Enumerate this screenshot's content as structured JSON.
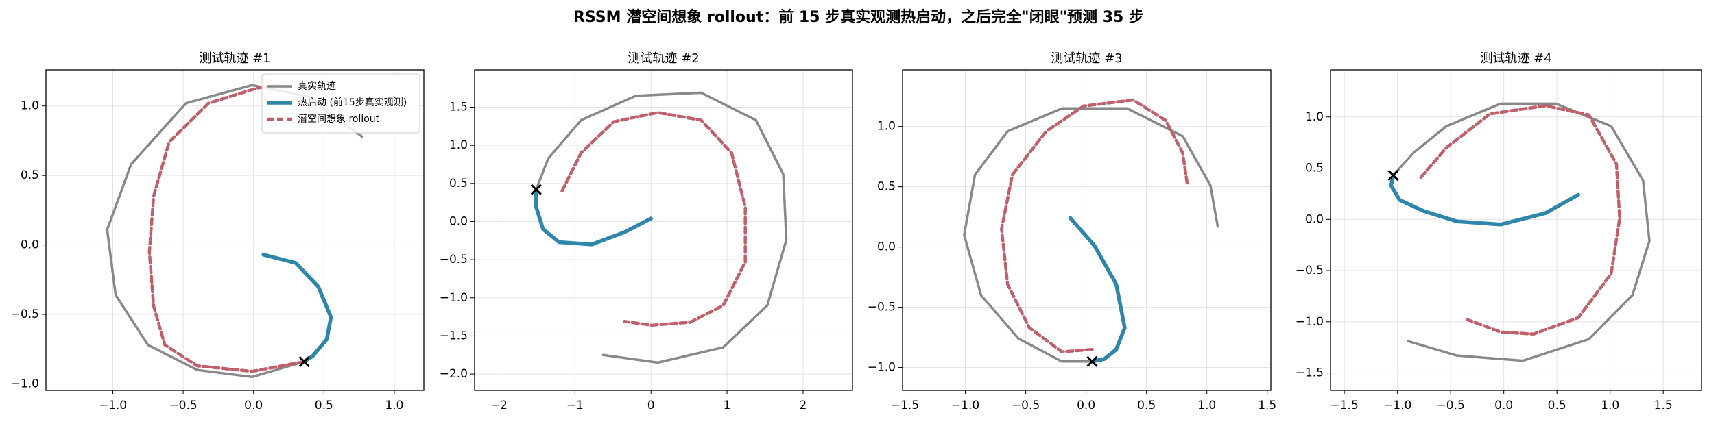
{
  "title": "RSSM 潜空间想象 rollout：前 15 步真实观测热启动，之后完全\"闭眼\"预测 35 步",
  "chart_data": [
    {
      "type": "line",
      "title": "测试轨迹 #1",
      "grid": true,
      "legend": "upper right",
      "xlim": [
        -1.475,
        1.21
      ],
      "ylim": [
        -1.047,
        1.26
      ],
      "xticks": [
        {
          "value": -1.0,
          "label": "−1.0"
        },
        {
          "value": -0.5,
          "label": "−0.5"
        },
        {
          "value": 0.0,
          "label": "0.0"
        },
        {
          "value": 0.5,
          "label": "0.5"
        },
        {
          "value": 1.0,
          "label": "1.0"
        }
      ],
      "yticks": [
        {
          "value": -1.0,
          "label": "−1.0"
        },
        {
          "value": -0.5,
          "label": "−0.5"
        },
        {
          "value": 0.0,
          "label": "0.0"
        },
        {
          "value": 0.5,
          "label": "0.5"
        },
        {
          "value": 1.0,
          "label": "1.0"
        }
      ],
      "series": [
        {
          "name": "真实轨迹",
          "color": "#888888",
          "style": "solid",
          "x": [
            0.07,
            0.3,
            0.46,
            0.55,
            0.52,
            0.42,
            0.36,
            -0.01,
            -0.4,
            -0.75,
            -0.98,
            -1.04,
            -0.87,
            -0.48,
            -0.01,
            0.38,
            0.77
          ],
          "values": [
            -0.07,
            -0.13,
            -0.3,
            -0.52,
            -0.68,
            -0.8,
            -0.84,
            -0.95,
            -0.9,
            -0.72,
            -0.36,
            0.11,
            0.58,
            1.02,
            1.15,
            1.07,
            0.78
          ]
        },
        {
          "name": "热启动 (前15步真实观测)",
          "color": "#2e86ab",
          "style": "thick",
          "x": [
            0.07,
            0.3,
            0.46,
            0.55,
            0.52,
            0.42,
            0.36
          ],
          "values": [
            -0.07,
            -0.13,
            -0.3,
            -0.52,
            -0.68,
            -0.8,
            -0.84
          ]
        },
        {
          "name": "潜空间想象 rollout",
          "color": "#c0606a",
          "style": "dashed",
          "x": [
            0.36,
            -0.01,
            -0.4,
            -0.63,
            -0.71,
            -0.74,
            -0.71,
            -0.6,
            -0.32,
            0.03,
            0.18
          ],
          "values": [
            -0.84,
            -0.91,
            -0.87,
            -0.72,
            -0.44,
            -0.05,
            0.35,
            0.74,
            1.02,
            1.13,
            1.15
          ]
        }
      ],
      "start_marker": {
        "x": 0.36,
        "y": -0.84
      }
    },
    {
      "type": "line",
      "title": "测试轨迹 #2",
      "grid": true,
      "xlim": [
        -2.32,
        2.65
      ],
      "ylim": [
        -2.215,
        1.99
      ],
      "xticks": [
        {
          "value": -2,
          "label": "−2"
        },
        {
          "value": -1,
          "label": "−1"
        },
        {
          "value": 0,
          "label": "0"
        },
        {
          "value": 1,
          "label": "1"
        },
        {
          "value": 2,
          "label": "2"
        }
      ],
      "yticks": [
        {
          "value": -2.0,
          "label": "−2.0"
        },
        {
          "value": -1.5,
          "label": "−1.5"
        },
        {
          "value": -1.0,
          "label": "−1.0"
        },
        {
          "value": -0.5,
          "label": "−0.5"
        },
        {
          "value": 0.0,
          "label": "0.0"
        },
        {
          "value": 0.5,
          "label": "0.5"
        },
        {
          "value": 1.0,
          "label": "1.0"
        },
        {
          "value": 1.5,
          "label": "1.5"
        }
      ],
      "series": [
        {
          "color": "#888888",
          "style": "solid",
          "x": [
            0,
            -0.35,
            -0.78,
            -1.21,
            -1.42,
            -1.51,
            -1.51,
            -1.35,
            -0.92,
            -0.2,
            0.66,
            1.38,
            1.74,
            1.78,
            1.53,
            0.95,
            0.09,
            -0.63
          ],
          "values": [
            0.04,
            -0.14,
            -0.3,
            -0.27,
            -0.1,
            0.19,
            0.42,
            0.83,
            1.33,
            1.65,
            1.69,
            1.33,
            0.62,
            -0.24,
            -1.1,
            -1.65,
            -1.85,
            -1.75
          ]
        },
        {
          "color": "#2e86ab",
          "style": "thick",
          "x": [
            0,
            -0.35,
            -0.78,
            -1.21,
            -1.42,
            -1.51,
            -1.51
          ],
          "values": [
            0.04,
            -0.14,
            -0.3,
            -0.27,
            -0.1,
            0.19,
            0.42
          ]
        },
        {
          "color": "#c0606a",
          "style": "dashed",
          "x": [
            -1.17,
            -0.92,
            -0.49,
            0.09,
            0.66,
            1.06,
            1.24,
            1.24,
            0.95,
            0.52,
            0.01,
            -0.35
          ],
          "values": [
            0.4,
            0.9,
            1.31,
            1.43,
            1.33,
            0.9,
            0.19,
            -0.53,
            -1.1,
            -1.32,
            -1.36,
            -1.31
          ]
        }
      ],
      "start_marker": {
        "x": -1.51,
        "y": 0.42
      }
    },
    {
      "type": "line",
      "title": "测试轨迹 #3",
      "grid": true,
      "xlim": [
        -1.52,
        1.53
      ],
      "ylim": [
        -1.19,
        1.47
      ],
      "xticks": [
        {
          "value": -1.5,
          "label": "−1.5"
        },
        {
          "value": -1.0,
          "label": "−1.0"
        },
        {
          "value": -0.5,
          "label": "−0.5"
        },
        {
          "value": 0.0,
          "label": "0.0"
        },
        {
          "value": 0.5,
          "label": "0.5"
        },
        {
          "value": 1.0,
          "label": "1.0"
        },
        {
          "value": 1.5,
          "label": "1.5"
        }
      ],
      "yticks": [
        {
          "value": -1.0,
          "label": "−1.0"
        },
        {
          "value": -0.5,
          "label": "−0.5"
        },
        {
          "value": 0.0,
          "label": "0.0"
        },
        {
          "value": 0.5,
          "label": "0.5"
        },
        {
          "value": 1.0,
          "label": "1.0"
        }
      ],
      "series": [
        {
          "color": "#888888",
          "style": "solid",
          "x": [
            -0.13,
            0.07,
            0.25,
            0.32,
            0.25,
            0.15,
            0.05,
            -0.2,
            -0.56,
            -0.87,
            -1.01,
            -0.92,
            -0.65,
            -0.2,
            0.34,
            0.8,
            1.03,
            1.09
          ],
          "values": [
            0.24,
            0.01,
            -0.31,
            -0.67,
            -0.85,
            -0.93,
            -0.95,
            -0.95,
            -0.76,
            -0.4,
            0.1,
            0.6,
            0.96,
            1.15,
            1.15,
            0.92,
            0.51,
            0.17
          ]
        },
        {
          "color": "#2e86ab",
          "style": "thick",
          "x": [
            -0.13,
            0.07,
            0.25,
            0.32,
            0.25,
            0.15,
            0.05
          ],
          "values": [
            0.24,
            0.01,
            -0.31,
            -0.67,
            -0.85,
            -0.93,
            -0.95
          ]
        },
        {
          "color": "#c0606a",
          "style": "dashed",
          "x": [
            0.05,
            -0.2,
            -0.47,
            -0.65,
            -0.7,
            -0.61,
            -0.33,
            -0.02,
            0.39,
            0.66,
            0.8,
            0.84
          ],
          "values": [
            -0.85,
            -0.87,
            -0.67,
            -0.31,
            0.15,
            0.6,
            0.96,
            1.17,
            1.22,
            1.05,
            0.78,
            0.51
          ]
        }
      ],
      "start_marker": {
        "x": 0.05,
        "y": -0.95
      }
    },
    {
      "type": "line",
      "title": "测试轨迹 #4",
      "grid": true,
      "xlim": [
        -1.63,
        1.86
      ],
      "ylim": [
        -1.67,
        1.46
      ],
      "xticks": [
        {
          "value": -1.5,
          "label": "−1.5"
        },
        {
          "value": -1.0,
          "label": "−1.0"
        },
        {
          "value": -0.5,
          "label": "−0.5"
        },
        {
          "value": 0.0,
          "label": "0.0"
        },
        {
          "value": 0.5,
          "label": "0.5"
        },
        {
          "value": 1.0,
          "label": "1.0"
        },
        {
          "value": 1.5,
          "label": "1.5"
        }
      ],
      "yticks": [
        {
          "value": -1.5,
          "label": "−1.5"
        },
        {
          "value": -1.0,
          "label": "−1.0"
        },
        {
          "value": -0.5,
          "label": "−0.5"
        },
        {
          "value": 0.0,
          "label": "0.0"
        },
        {
          "value": 0.5,
          "label": "0.5"
        },
        {
          "value": 1.0,
          "label": "1.0"
        }
      ],
      "series": [
        {
          "color": "#888888",
          "style": "solid",
          "x": [
            0.7,
            0.39,
            -0.03,
            -0.44,
            -0.75,
            -0.98,
            -1.06,
            -1.04,
            -0.85,
            -0.54,
            -0.03,
            0.49,
            1.01,
            1.31,
            1.37,
            1.21,
            0.8,
            0.18,
            -0.44,
            -0.9
          ],
          "values": [
            0.24,
            0.06,
            -0.05,
            -0.02,
            0.08,
            0.19,
            0.33,
            0.43,
            0.65,
            0.91,
            1.13,
            1.13,
            0.91,
            0.38,
            -0.21,
            -0.74,
            -1.17,
            -1.38,
            -1.33,
            -1.19
          ]
        },
        {
          "color": "#2e86ab",
          "style": "thick",
          "x": [
            0.7,
            0.39,
            -0.03,
            -0.44,
            -0.75,
            -0.98,
            -1.06,
            -1.04
          ],
          "values": [
            0.24,
            0.06,
            -0.05,
            -0.02,
            0.08,
            0.19,
            0.33,
            0.43
          ]
        },
        {
          "color": "#c0606a",
          "style": "dashed",
          "x": [
            -0.78,
            -0.54,
            -0.13,
            0.39,
            0.8,
            1.06,
            1.09,
            1.01,
            0.7,
            0.28,
            -0.03,
            -0.34
          ],
          "values": [
            0.41,
            0.7,
            1.03,
            1.11,
            1.02,
            0.54,
            0.01,
            -0.53,
            -0.96,
            -1.12,
            -1.1,
            -0.98
          ]
        }
      ],
      "start_marker": {
        "x": -1.04,
        "y": 0.43
      }
    }
  ]
}
